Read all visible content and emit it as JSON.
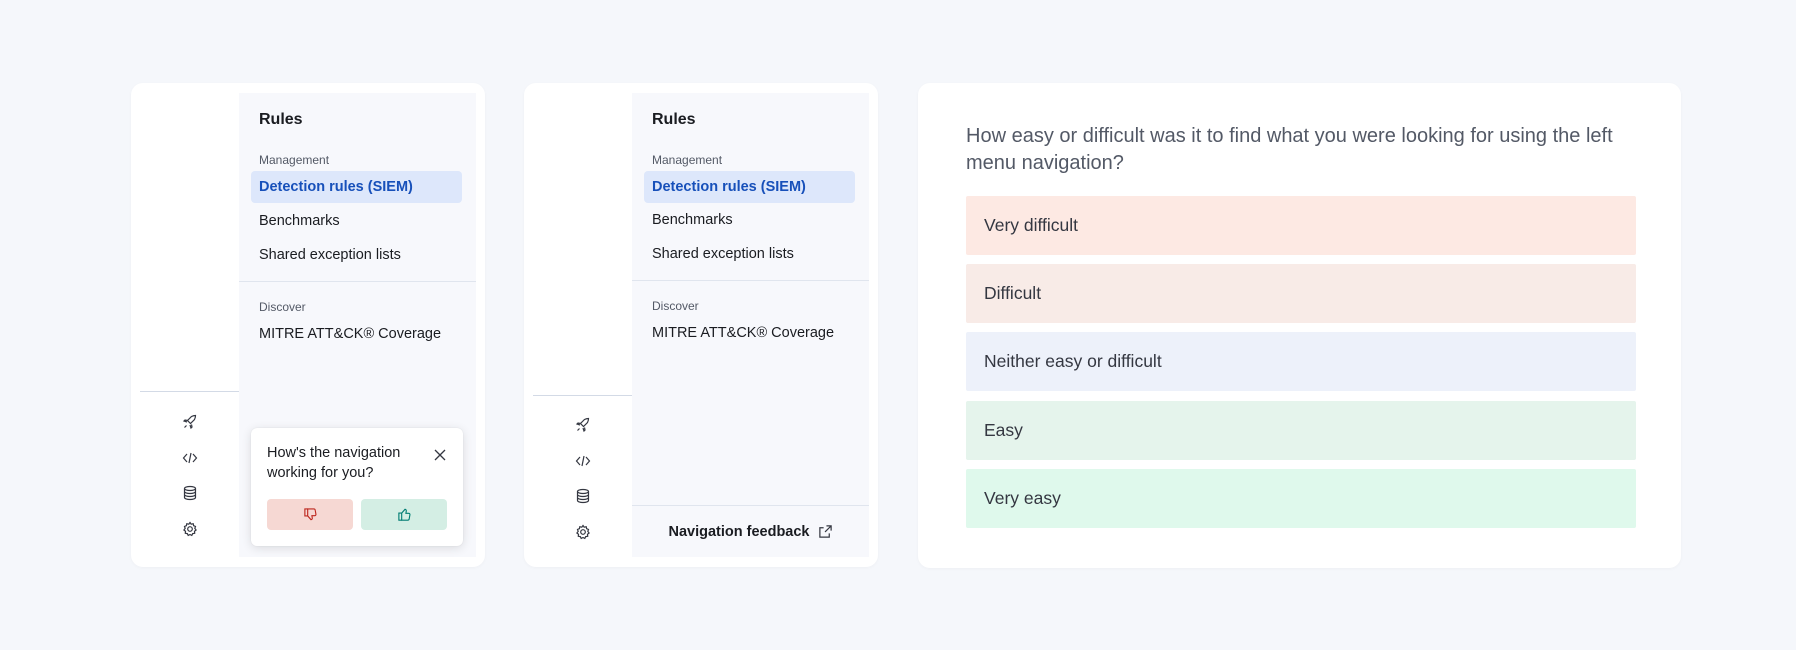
{
  "nav_panel": {
    "title": "Rules",
    "sections": [
      {
        "label": "Management",
        "items": [
          {
            "label": "Detection rules (SIEM)",
            "active": true
          },
          {
            "label": "Benchmarks",
            "active": false
          },
          {
            "label": "Shared exception lists",
            "active": false
          }
        ]
      },
      {
        "label": "Discover",
        "items": [
          {
            "label": "MITRE ATT&CK® Coverage",
            "active": false
          }
        ]
      }
    ]
  },
  "rail_icons": [
    "rocket-icon",
    "code-icon",
    "database-icon",
    "gear-icon"
  ],
  "popover": {
    "question": "How's the navigation working for you?",
    "thumbs_down_icon": "thumbs-down-icon",
    "thumbs_up_icon": "thumbs-up-icon",
    "close_icon": "close-icon"
  },
  "feedback_link": {
    "label": "Navigation feedback",
    "icon": "external-link-icon"
  },
  "survey": {
    "question": "How easy or difficult was it to find what you were looking for using the left menu navigation?",
    "options": [
      {
        "label": "Very difficult",
        "color": "#fde9e3"
      },
      {
        "label": "Difficult",
        "color": "#f8ebe7"
      },
      {
        "label": "Neither easy or difficult",
        "color": "#edf1fa"
      },
      {
        "label": "Easy",
        "color": "#e5f4ec"
      },
      {
        "label": "Very easy",
        "color": "#dff9ec"
      }
    ]
  },
  "colors": {
    "active_bg": "#dde7fb",
    "active_text": "#1750ba",
    "thumbs_down_bg": "#f6d8d3",
    "thumbs_up_bg": "#d4eee4"
  }
}
